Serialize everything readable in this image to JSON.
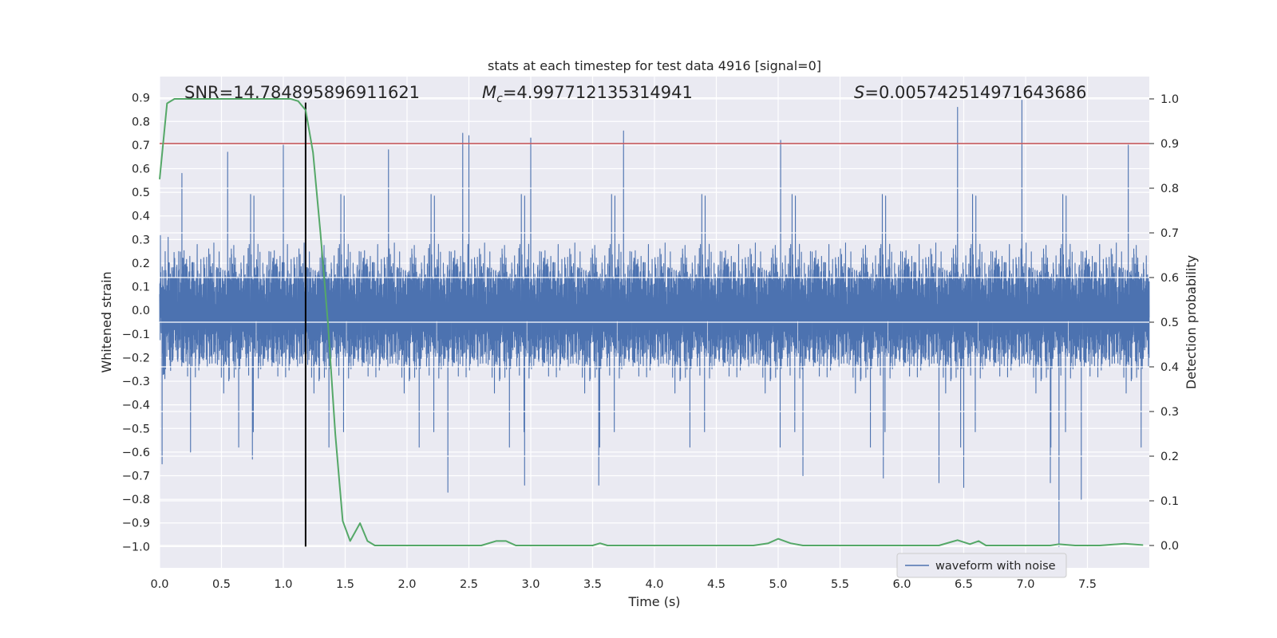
{
  "chart_data": {
    "type": "line",
    "title": "stats at each timestep for test data 4916 [signal=0]",
    "xlabel": "Time (s)",
    "ylabel": "Whitened strain",
    "y2label": "Detection probability",
    "xlim": [
      0.0,
      8.0
    ],
    "ylim": [
      -1.09,
      0.99
    ],
    "y2lim": [
      -0.05,
      1.05
    ],
    "xticks": [
      "0.0",
      "0.5",
      "1.0",
      "1.5",
      "2.0",
      "2.5",
      "3.0",
      "3.5",
      "4.0",
      "4.5",
      "5.0",
      "5.5",
      "6.0",
      "6.5",
      "7.0",
      "7.5"
    ],
    "yticks": [
      "0.9",
      "0.8",
      "0.7",
      "0.6",
      "0.5",
      "0.4",
      "0.3",
      "0.2",
      "0.1",
      "0.0",
      "−0.1",
      "−0.2",
      "−0.3",
      "−0.4",
      "−0.5",
      "−0.6",
      "−0.7",
      "−0.8",
      "−0.9",
      "−1.0"
    ],
    "y2ticks": [
      "1.0",
      "0.9",
      "0.8",
      "0.7",
      "0.6",
      "0.5",
      "0.4",
      "0.3",
      "0.2",
      "0.1",
      "0.0"
    ],
    "grid": true,
    "legend_position": "lower-right",
    "annotations": {
      "snr": "SNR=14.784895896911621",
      "mc_symbol": "M",
      "mc_sub": "c",
      "mc_value": "=4.997712135314941",
      "s_symbol": "S",
      "s_value": "=0.005742514971643686"
    },
    "threshold": {
      "axis": "right",
      "y": 0.9,
      "color": "#c44e52"
    },
    "vline": {
      "x": 1.18,
      "y_from": -1.0,
      "y_to": 0.88,
      "color": "#000000"
    },
    "series": [
      {
        "name": "waveform with noise",
        "axis": "left",
        "color": "#4c72b0",
        "kind": "noise",
        "sample_rate": 2048,
        "spikes": [
          [
            0.02,
            -0.65
          ],
          [
            0.18,
            0.58
          ],
          [
            0.25,
            -0.6
          ],
          [
            0.55,
            0.67
          ],
          [
            0.75,
            -0.63
          ],
          [
            1.0,
            0.7
          ],
          [
            1.85,
            0.68
          ],
          [
            2.33,
            -0.77
          ],
          [
            2.45,
            0.75
          ],
          [
            2.5,
            0.74
          ],
          [
            2.95,
            -0.74
          ],
          [
            3.0,
            0.73
          ],
          [
            3.55,
            -0.74
          ],
          [
            3.75,
            0.76
          ],
          [
            5.02,
            0.72
          ],
          [
            5.2,
            -0.7
          ],
          [
            5.85,
            -0.71
          ],
          [
            6.3,
            -0.73
          ],
          [
            6.45,
            0.86
          ],
          [
            6.5,
            -0.75
          ],
          [
            6.97,
            0.89
          ],
          [
            7.2,
            -0.73
          ],
          [
            7.27,
            -1.0
          ],
          [
            7.45,
            -0.8
          ],
          [
            7.83,
            0.7
          ]
        ]
      },
      {
        "name": "",
        "axis": "right",
        "color": "#55a868",
        "x": [
          0.0,
          0.06,
          0.12,
          0.2,
          0.3,
          0.4,
          0.5,
          0.6,
          0.7,
          0.8,
          0.9,
          1.0,
          1.06,
          1.12,
          1.18,
          1.24,
          1.3,
          1.36,
          1.42,
          1.48,
          1.54,
          1.62,
          1.68,
          1.74,
          1.8,
          1.9,
          2.0,
          2.2,
          2.4,
          2.6,
          2.72,
          2.8,
          2.88,
          3.0,
          3.2,
          3.4,
          3.5,
          3.56,
          3.62,
          3.8,
          3.95,
          4.0,
          4.2,
          4.45,
          4.6,
          4.8,
          4.92,
          5.0,
          5.1,
          5.2,
          5.4,
          5.6,
          5.8,
          6.0,
          6.2,
          6.3,
          6.4,
          6.45,
          6.55,
          6.62,
          6.68,
          6.8,
          7.0,
          7.2,
          7.27,
          7.4,
          7.6,
          7.8,
          7.95
        ],
        "y": [
          0.82,
          0.99,
          1.0,
          1.0,
          1.0,
          1.0,
          1.0,
          1.0,
          1.0,
          1.0,
          1.0,
          1.0,
          1.0,
          0.995,
          0.975,
          0.88,
          0.7,
          0.5,
          0.25,
          0.055,
          0.01,
          0.05,
          0.01,
          0.0,
          0.0,
          0.0,
          0.0,
          0.0,
          0.0,
          0.0,
          0.01,
          0.01,
          0.0,
          0.0,
          0.0,
          0.0,
          0.0,
          0.005,
          0.0,
          0.0,
          0.0,
          0.0,
          0.0,
          0.0,
          0.0,
          0.0,
          0.005,
          0.015,
          0.005,
          0.0,
          0.0,
          0.0,
          0.0,
          0.0,
          0.0,
          0.0,
          0.008,
          0.012,
          0.003,
          0.01,
          0.0,
          0.0,
          0.0,
          0.0,
          0.003,
          0.0,
          0.0,
          0.004,
          0.001
        ]
      }
    ]
  }
}
